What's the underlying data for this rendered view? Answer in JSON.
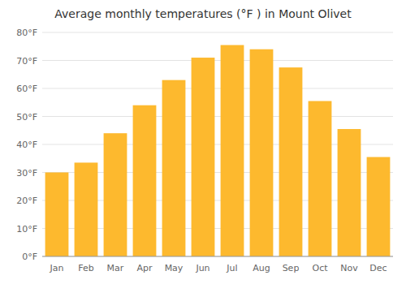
{
  "chart_data": {
    "type": "bar",
    "title": "Average monthly temperatures (°F ) in Mount Olivet",
    "categories": [
      "Jan",
      "Feb",
      "Mar",
      "Apr",
      "May",
      "Jun",
      "Jul",
      "Aug",
      "Sep",
      "Oct",
      "Nov",
      "Dec"
    ],
    "values": [
      30,
      33.5,
      44,
      54,
      63,
      71,
      75.5,
      74,
      67.5,
      55.5,
      45.5,
      35.5
    ],
    "color": "#FDB92E",
    "ylim": [
      0,
      80
    ],
    "yticks": [
      {
        "value": 0,
        "label": "0°F"
      },
      {
        "value": 10,
        "label": "10°F"
      },
      {
        "value": 20,
        "label": "20°F"
      },
      {
        "value": 30,
        "label": "30°F"
      },
      {
        "value": 40,
        "label": "40°F"
      },
      {
        "value": 50,
        "label": "50°F"
      },
      {
        "value": 60,
        "label": "60°F"
      },
      {
        "value": 70,
        "label": "70°F"
      },
      {
        "value": 80,
        "label": "80°F"
      }
    ],
    "grid": true
  }
}
